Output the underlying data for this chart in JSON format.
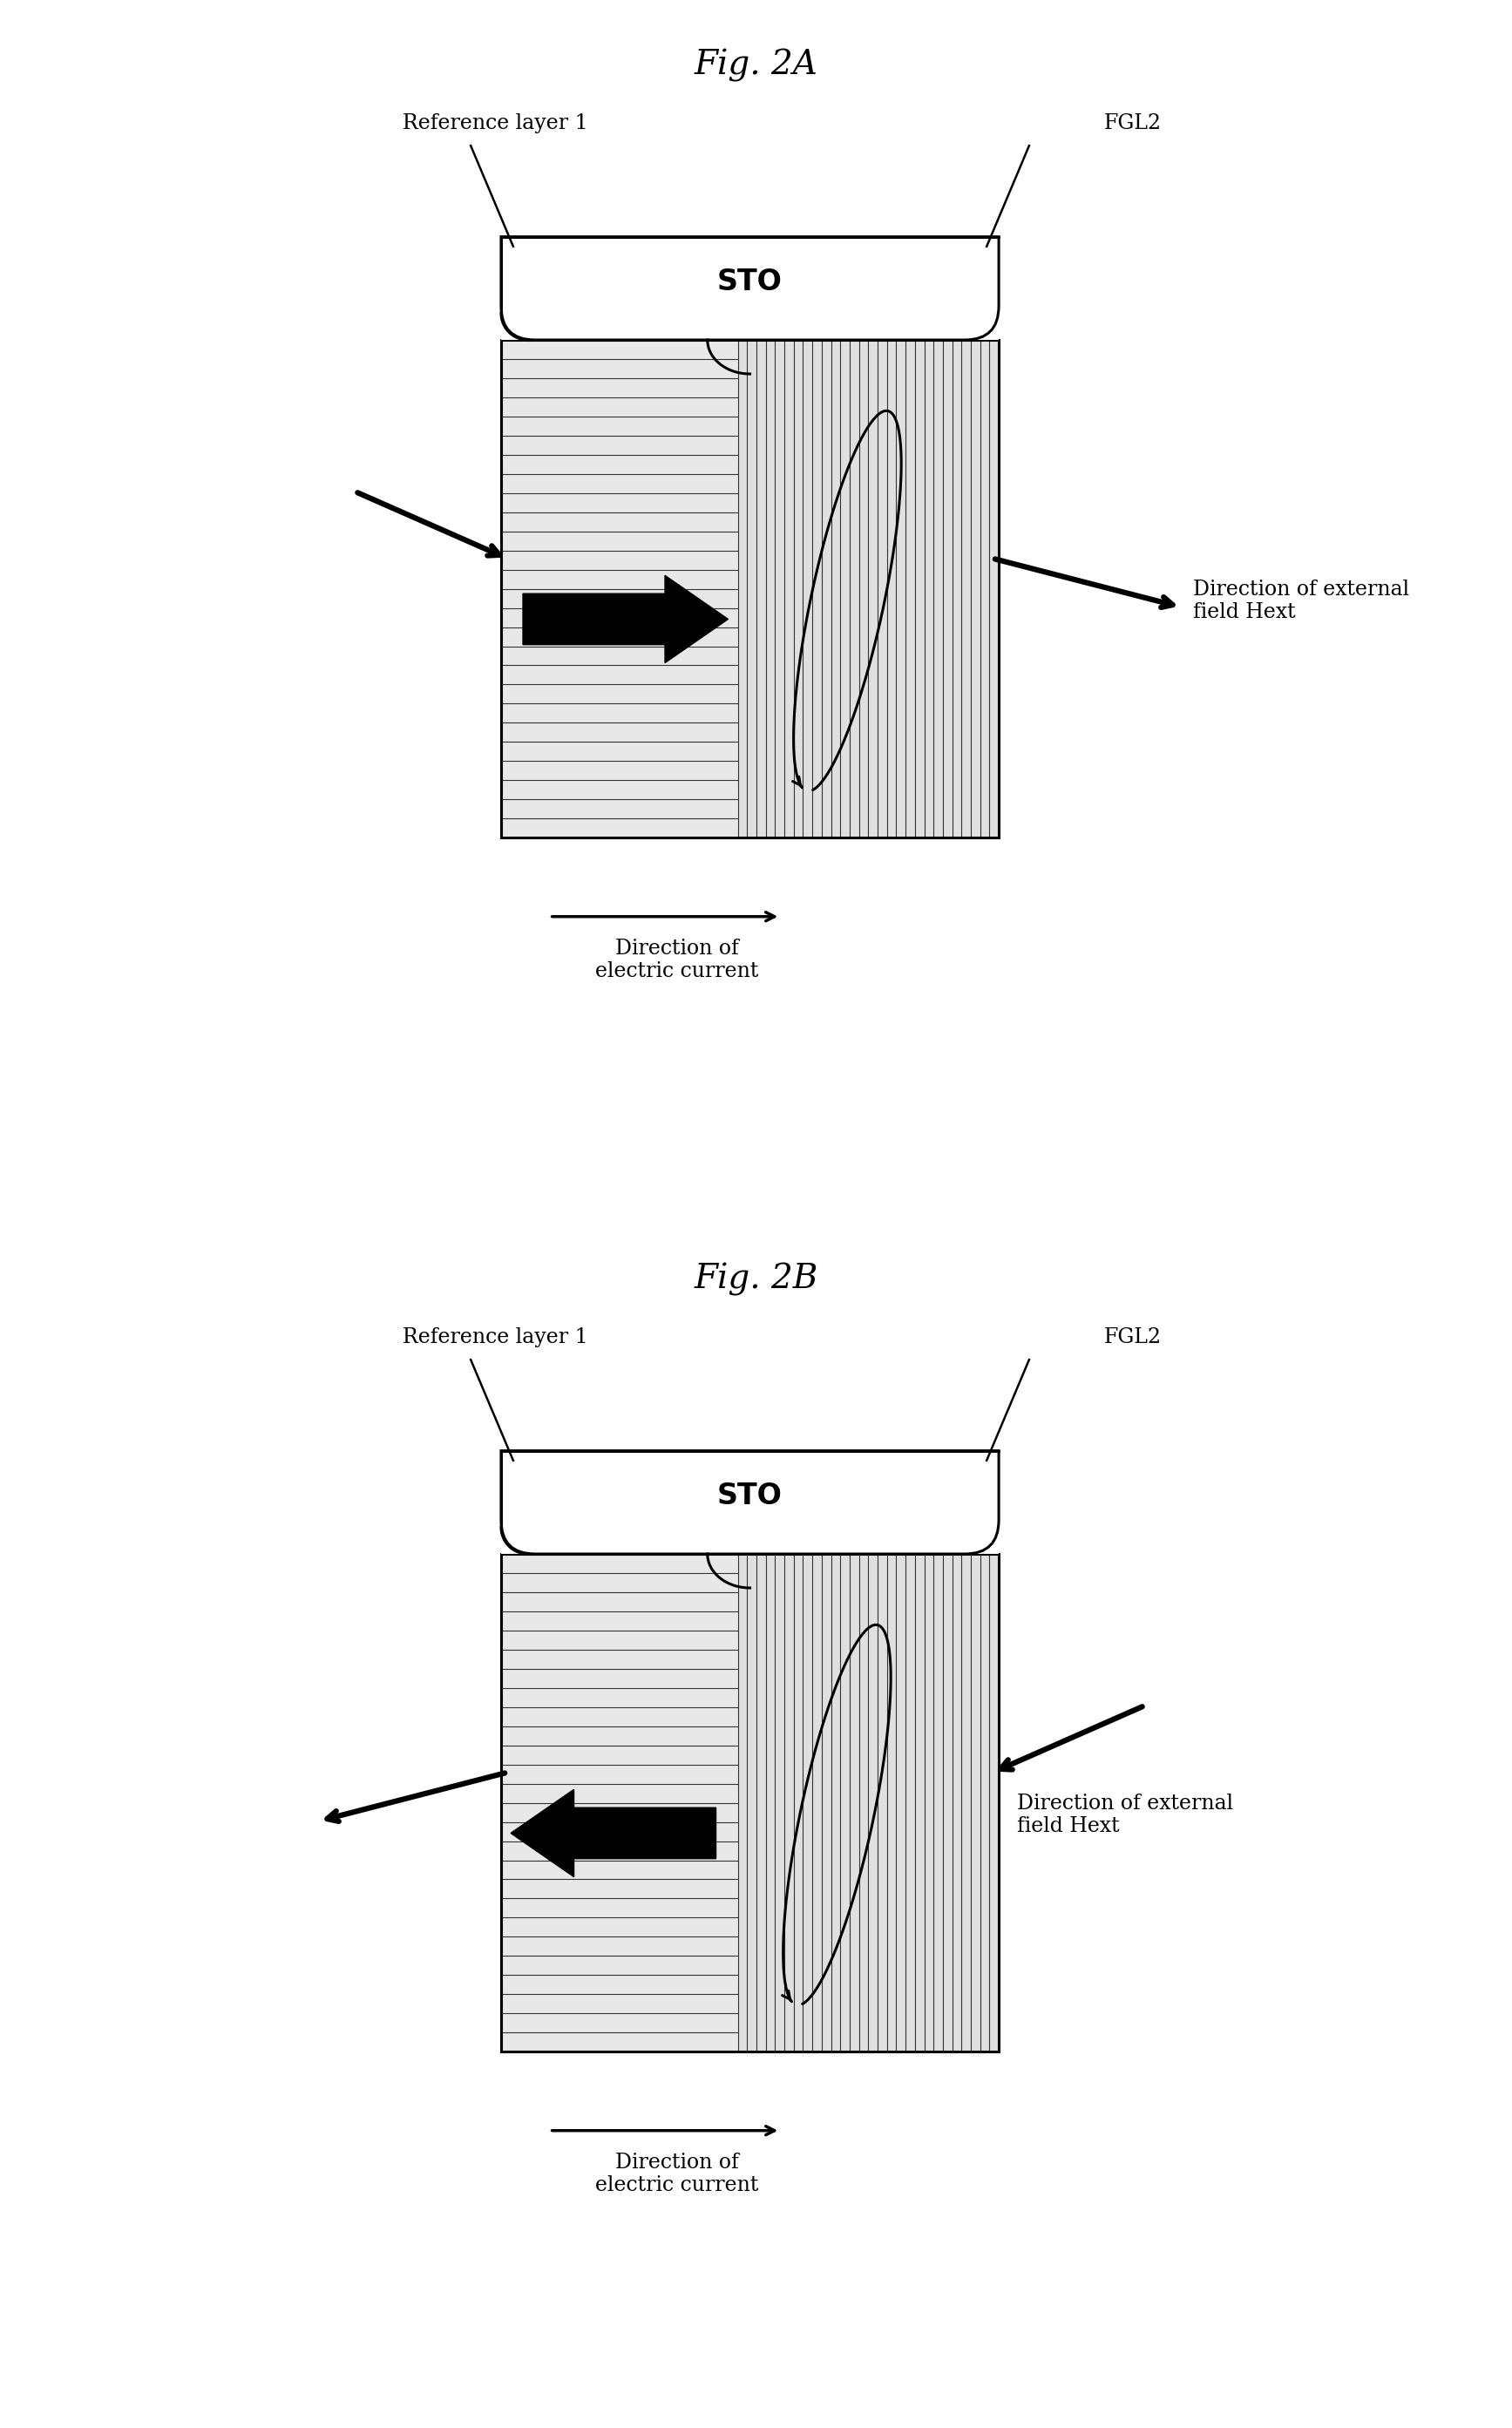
{
  "fig_title_A": "Fig. 2A",
  "fig_title_B": "Fig. 2B",
  "label_ref": "Reference layer 1",
  "label_fgl": "FGL2",
  "label_sto": "STO",
  "label_hext": "Direction of external\nfield Hext",
  "label_current": "Direction of\nelectric current",
  "bg_color": "#ffffff",
  "line_color": "#000000",
  "title_fontsize": 28,
  "label_fontsize": 17,
  "sto_fontsize": 24
}
